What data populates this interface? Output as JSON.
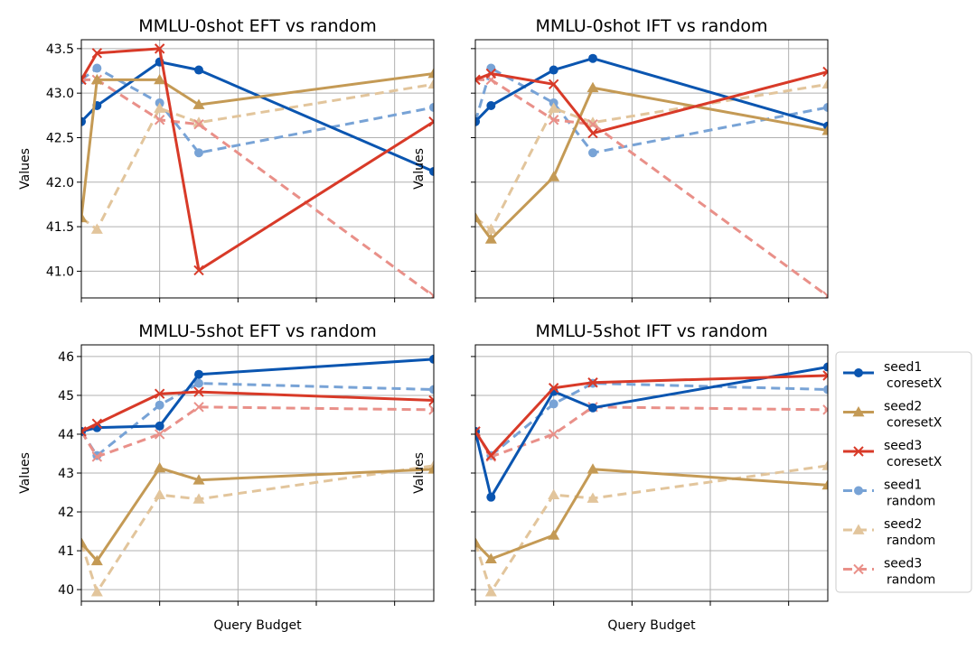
{
  "colors": {
    "seed1_coresetX": "#0a55b0",
    "seed2_coresetX": "#c49a55",
    "seed3_coresetX": "#d83a28",
    "seed1_random": "#78a3d6",
    "seed2_random": "#e2c59c",
    "seed3_random": "#e99089"
  },
  "legend": {
    "placement": "right",
    "entries": [
      {
        "line1": "seed1",
        "line2": "coresetX",
        "color": "#0a55b0",
        "marker": "circle",
        "dash": "solid"
      },
      {
        "line1": "seed2",
        "line2": "coresetX",
        "color": "#c49a55",
        "marker": "triangle",
        "dash": "solid"
      },
      {
        "line1": "seed3",
        "line2": "coresetX",
        "color": "#d83a28",
        "marker": "x",
        "dash": "solid"
      },
      {
        "line1": "seed1",
        "line2": "random",
        "color": "#78a3d6",
        "marker": "circle",
        "dash": "dashed"
      },
      {
        "line1": "seed2",
        "line2": "random",
        "color": "#e2c59c",
        "marker": "triangle",
        "dash": "dashed"
      },
      {
        "line1": "seed3",
        "line2": "random",
        "color": "#e99089",
        "marker": "x",
        "dash": "dashed"
      }
    ]
  },
  "chart_data": [
    {
      "type": "line",
      "title": "MMLU-0shot EFT vs random",
      "xlabel": "",
      "ylabel": "Values",
      "xlim": [
        0,
        9
      ],
      "ylim": [
        40.7,
        43.6
      ],
      "yticks": [
        "41.0",
        "41.5",
        "42.0",
        "42.5",
        "43.0",
        "43.5"
      ],
      "ytick_values": [
        41.0,
        41.5,
        42.0,
        42.5,
        43.0,
        43.5
      ],
      "grid": true,
      "x": [
        0,
        0.4,
        2,
        3,
        9
      ],
      "series": [
        {
          "name": "seed1 coresetX",
          "values": [
            42.68,
            42.86,
            43.35,
            43.26,
            42.12
          ]
        },
        {
          "name": "seed2 coresetX",
          "values": [
            41.6,
            43.15,
            43.15,
            42.87,
            43.22
          ]
        },
        {
          "name": "seed3 coresetX",
          "values": [
            43.15,
            43.45,
            43.5,
            41.01,
            42.68
          ]
        },
        {
          "name": "seed1 random",
          "values": [
            43.15,
            43.28,
            42.89,
            42.33,
            42.84
          ]
        },
        {
          "name": "seed2 random",
          "values": [
            41.6,
            41.47,
            42.83,
            42.67,
            43.1
          ]
        },
        {
          "name": "seed3 random",
          "values": [
            43.15,
            43.15,
            42.7,
            42.65,
            40.72
          ]
        }
      ]
    },
    {
      "type": "line",
      "title": "MMLU-0shot IFT vs random",
      "xlabel": "",
      "ylabel": "Values",
      "xlim": [
        0,
        9
      ],
      "ylim": [
        40.7,
        43.6
      ],
      "yticks": [],
      "ytick_values": [
        41.0,
        41.5,
        42.0,
        42.5,
        43.0,
        43.5
      ],
      "grid": true,
      "x": [
        0,
        0.4,
        2,
        3,
        9
      ],
      "series": [
        {
          "name": "seed1 coresetX",
          "values": [
            42.68,
            42.86,
            43.26,
            43.39,
            42.63
          ]
        },
        {
          "name": "seed2 coresetX",
          "values": [
            41.6,
            41.36,
            42.06,
            43.06,
            42.58
          ]
        },
        {
          "name": "seed3 coresetX",
          "values": [
            43.15,
            43.22,
            43.1,
            42.55,
            43.24
          ]
        },
        {
          "name": "seed1 random",
          "values": [
            42.68,
            43.28,
            42.89,
            42.33,
            42.84
          ]
        },
        {
          "name": "seed2 random",
          "values": [
            41.6,
            41.47,
            42.83,
            42.67,
            43.1
          ]
        },
        {
          "name": "seed3 random",
          "values": [
            43.15,
            43.15,
            42.7,
            42.65,
            40.72
          ]
        }
      ]
    },
    {
      "type": "line",
      "title": "MMLU-5shot EFT vs random",
      "xlabel": "Query Budget",
      "ylabel": "Values",
      "xlim": [
        0,
        9
      ],
      "ylim": [
        39.7,
        46.3
      ],
      "yticks": [
        "40",
        "41",
        "42",
        "43",
        "44",
        "45",
        "46"
      ],
      "ytick_values": [
        40,
        41,
        42,
        43,
        44,
        45,
        46
      ],
      "grid": true,
      "x": [
        0,
        0.4,
        2,
        3,
        9
      ],
      "series": [
        {
          "name": "seed1 coresetX",
          "values": [
            44.07,
            44.17,
            44.21,
            45.54,
            45.93
          ]
        },
        {
          "name": "seed2 coresetX",
          "values": [
            41.2,
            40.74,
            43.13,
            42.82,
            43.1
          ]
        },
        {
          "name": "seed3 coresetX",
          "values": [
            44.07,
            44.27,
            45.04,
            45.09,
            44.87
          ]
        },
        {
          "name": "seed1 random",
          "values": [
            44.07,
            43.45,
            44.75,
            45.31,
            45.15
          ]
        },
        {
          "name": "seed2 random",
          "values": [
            41.2,
            39.94,
            42.44,
            42.33,
            43.19
          ]
        },
        {
          "name": "seed3 random",
          "values": [
            44.07,
            43.42,
            44.0,
            44.7,
            44.63
          ]
        }
      ]
    },
    {
      "type": "line",
      "title": "MMLU-5shot IFT vs random",
      "xlabel": "Query Budget",
      "ylabel": "Values",
      "xlim": [
        0,
        9
      ],
      "ylim": [
        39.7,
        46.3
      ],
      "yticks": [],
      "ytick_values": [
        40,
        41,
        42,
        43,
        44,
        45,
        46
      ],
      "grid": true,
      "x": [
        0,
        0.4,
        2,
        3,
        9
      ],
      "series": [
        {
          "name": "seed1 coresetX",
          "values": [
            44.07,
            42.38,
            45.1,
            44.68,
            45.73
          ]
        },
        {
          "name": "seed2 coresetX",
          "values": [
            41.2,
            40.79,
            41.4,
            43.1,
            42.69
          ]
        },
        {
          "name": "seed3 coresetX",
          "values": [
            44.07,
            43.45,
            45.19,
            45.33,
            45.51
          ]
        },
        {
          "name": "seed1 random",
          "values": [
            44.07,
            43.45,
            44.78,
            45.31,
            45.15
          ]
        },
        {
          "name": "seed2 random",
          "values": [
            41.2,
            39.94,
            42.44,
            42.35,
            43.19
          ]
        },
        {
          "name": "seed3 random",
          "values": [
            44.07,
            43.42,
            44.0,
            44.7,
            44.63
          ]
        }
      ]
    }
  ]
}
